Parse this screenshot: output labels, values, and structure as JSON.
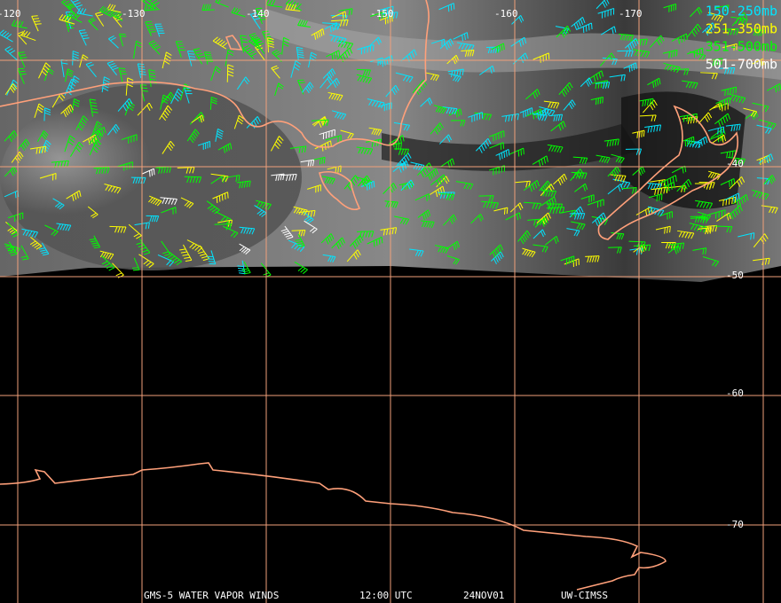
{
  "map": {
    "longitude_labels": [
      "-120",
      "-130",
      "-140",
      "-150",
      "-160",
      "-170"
    ],
    "latitude_labels": [
      "-40",
      "-50",
      "-60",
      "-70"
    ],
    "legend": [
      {
        "label": "150-250mb",
        "color": "#00e5ff"
      },
      {
        "label": "251-350mb",
        "color": "#ffff00"
      },
      {
        "label": "351-500mb",
        "color": "#00ff00"
      },
      {
        "label": "501-700mb",
        "color": "#ffffff"
      }
    ],
    "footer": [
      "GMS-5 WATER VAPOR WINDS",
      "12:00 UTC",
      "24NOV01",
      "UW-CIMSS"
    ]
  }
}
